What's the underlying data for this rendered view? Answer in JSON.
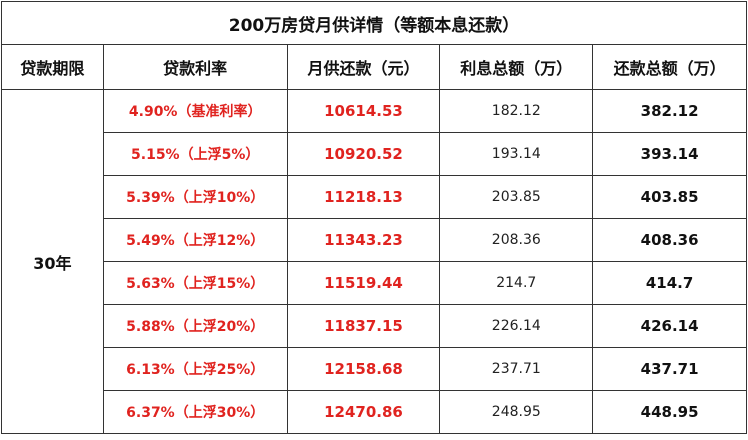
{
  "title": "200万房贷月供详情（等额本息还款）",
  "headers": {
    "term": "贷款期限",
    "rate": "贷款利率",
    "monthly": "月供还款（元）",
    "interest": "利息总额（万）",
    "total": "还款总额（万）"
  },
  "term_value": "30年",
  "rows": [
    {
      "rate": "4.90%（基准利率）",
      "monthly": "10614.53",
      "interest": "182.12",
      "total": "382.12"
    },
    {
      "rate": "5.15%（上浮5%）",
      "monthly": "10920.52",
      "interest": "193.14",
      "total": "393.14"
    },
    {
      "rate": "5.39%（上浮10%）",
      "monthly": "11218.13",
      "interest": "203.85",
      "total": "403.85"
    },
    {
      "rate": "5.49%（上浮12%）",
      "monthly": "11343.23",
      "interest": "208.36",
      "total": "408.36"
    },
    {
      "rate": "5.63%（上浮15%）",
      "monthly": "11519.44",
      "interest": "214.7",
      "total": "414.7"
    },
    {
      "rate": "5.88%（上浮20%）",
      "monthly": "11837.15",
      "interest": "226.14",
      "total": "426.14"
    },
    {
      "rate": "6.13%（上浮25%）",
      "monthly": "12158.68",
      "interest": "237.71",
      "total": "437.71"
    },
    {
      "rate": "6.37%（上浮30%）",
      "monthly": "12470.86",
      "interest": "248.95",
      "total": "448.95"
    }
  ],
  "colors": {
    "highlight": "#e0231f",
    "text": "#111111",
    "border": "#333333"
  }
}
